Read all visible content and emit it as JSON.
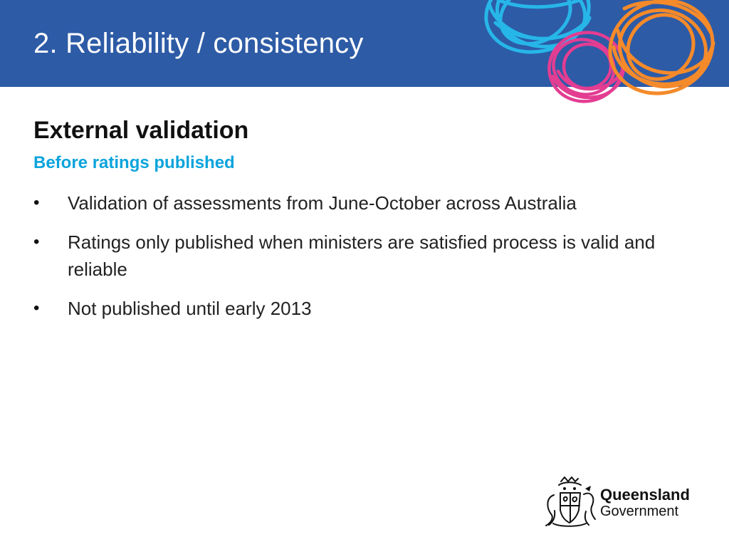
{
  "slide": {
    "title": "2. Reliability / consistency",
    "section_heading": "External validation",
    "subheading": "Before ratings published",
    "bullet_symbol": "•",
    "bullets": [
      "Validation of assessments from June-October across Australia",
      "Ratings only published when ministers are satisfied process is valid and reliable",
      "Not published until early 2013"
    ]
  },
  "logo": {
    "line1": "Queensland",
    "line2": "Government",
    "icon": "queensland-coat-of-arms-icon"
  },
  "decorative": {
    "scribbles": "colorful-scribble-circles-icon"
  },
  "colors": {
    "header_blue": "#2d5ba6",
    "subheading_blue": "#0ba4dc",
    "scribble_blue": "#27b6e8",
    "scribble_orange": "#f58a2a",
    "scribble_pink": "#e33d92"
  }
}
